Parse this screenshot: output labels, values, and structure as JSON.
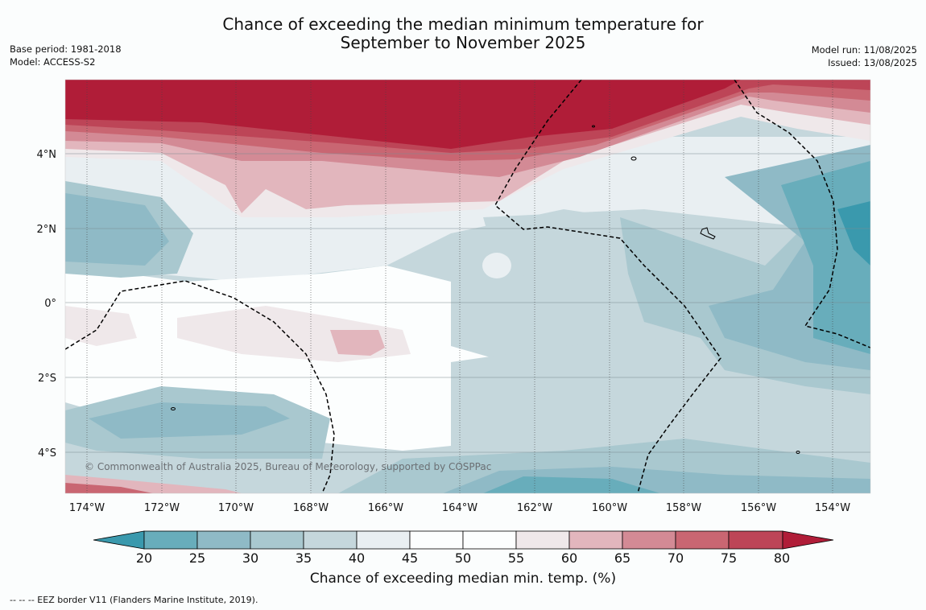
{
  "title": {
    "line1": "Chance of exceeding the median minimum temperature for",
    "line2": "September to November 2025"
  },
  "meta_left": {
    "base_period": "Base period: 1981-2018",
    "model": "Model: ACCESS-S2"
  },
  "meta_right": {
    "model_run": "Model run: 11/08/2025",
    "issued": "Issued: 13/08/2025"
  },
  "map": {
    "lon_ticks": [
      "174°W",
      "172°W",
      "170°W",
      "168°W",
      "166°W",
      "164°W",
      "162°W",
      "160°W",
      "158°W",
      "156°W",
      "154°W"
    ],
    "lat_ticks": [
      "4°N",
      "2°N",
      "0°",
      "2°S",
      "4°S"
    ],
    "copyright": "© Commonwealth of Australia 2025, Bureau of Meteorology, supported by COSPPac",
    "colors": {
      "c20": "#3a99ad",
      "c20_25": "#68adbb",
      "c25_30": "#8fbac6",
      "c30_35": "#a9c8cf",
      "c35_40": "#c5d7dc",
      "c40_45": "#e9eff2",
      "c45_50": "#fcfefe",
      "c50_55": "#fcfefe",
      "c55_60": "#efe8ea",
      "c60_65": "#e2b6bd",
      "c65_70": "#d38a95",
      "c70_75": "#c96672",
      "c75_80": "#bd4557",
      "c80": "#b01d38"
    }
  },
  "colorbar": {
    "ticks": [
      "20",
      "25",
      "30",
      "35",
      "40",
      "45",
      "50",
      "55",
      "60",
      "65",
      "70",
      "75",
      "80"
    ],
    "title": "Chance of exceeding median min. temp. (%)"
  },
  "footer": "--  --  -- EEZ border V11 (Flanders Marine Institute, 2019)."
}
